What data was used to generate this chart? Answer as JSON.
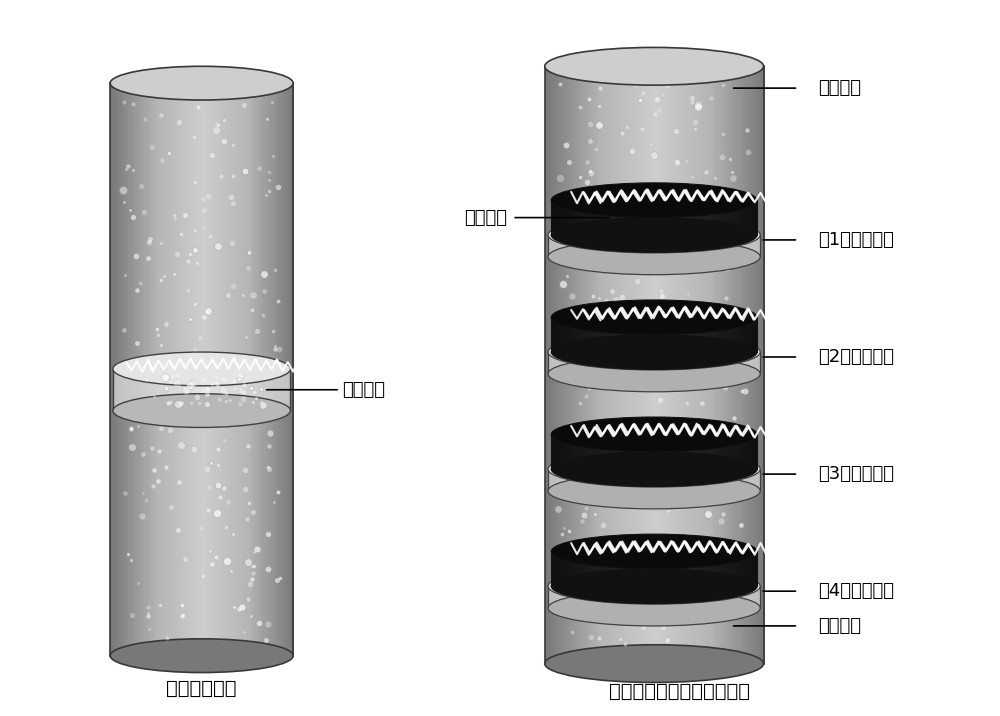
{
  "bg_color": "#ffffff",
  "title_left": "传统锂硫电池",
  "title_right": "具有多层改性隔膜锂硫电池",
  "label_putong": "普通隔膜",
  "label_duoliuhua": "多硫化物",
  "label_sulfur_cathode": "硫正极片",
  "label_layer1": "第1层改性隔膜",
  "label_layer2": "第2层改性隔膜",
  "label_layer3": "第3层改性隔膜",
  "label_layer4": "第4层改性隔膜",
  "label_lithium": "锂片负极",
  "cyl_dark": "#808080",
  "cyl_mid": "#b8b8b8",
  "cyl_light": "#d0d0d0",
  "cyl_edge": "#404040",
  "sep_light": "#e8e8e8",
  "sep_dark": "#c0c0c0",
  "dark_layer": "#111111",
  "font_size_label": 13,
  "font_size_title": 14
}
